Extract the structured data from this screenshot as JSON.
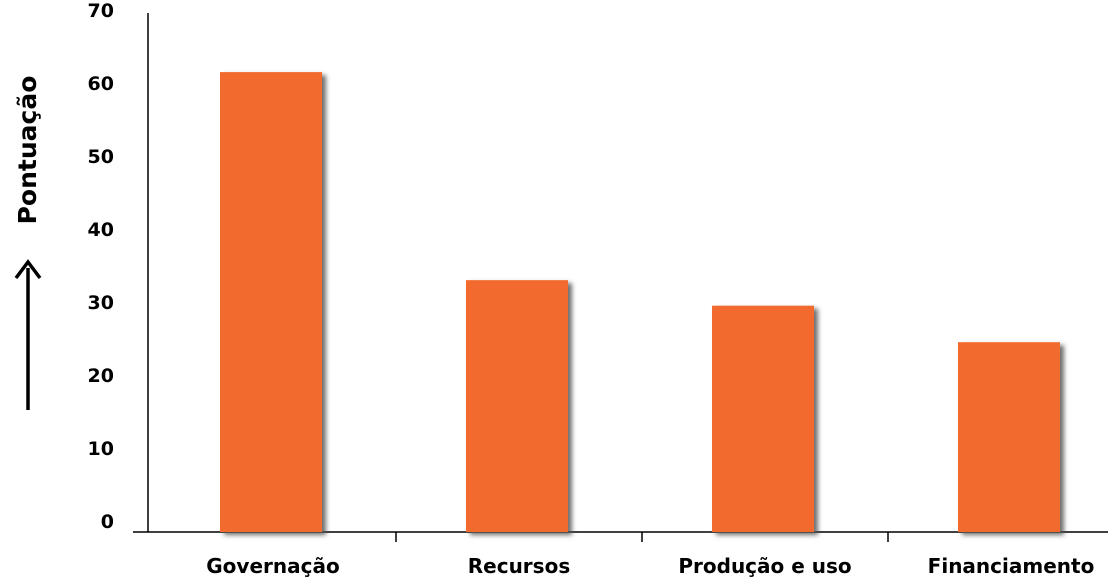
{
  "chart_data": {
    "type": "bar",
    "categories": [
      "Governação",
      "Recursos",
      "Produção e uso",
      "Financiamento"
    ],
    "values": [
      63,
      34.5,
      31,
      26
    ],
    "title": "",
    "xlabel": "",
    "ylabel": "Pontuação",
    "ylim": [
      0,
      70
    ],
    "yticks": [
      "0",
      "10",
      "20",
      "30",
      "40",
      "50",
      "60",
      "70"
    ],
    "grid": false,
    "legend": "none",
    "colors": {
      "bar": "#f26b2f",
      "bar_shadow": "#7a7a7a",
      "axis": "#000000",
      "text": "#000000"
    }
  }
}
